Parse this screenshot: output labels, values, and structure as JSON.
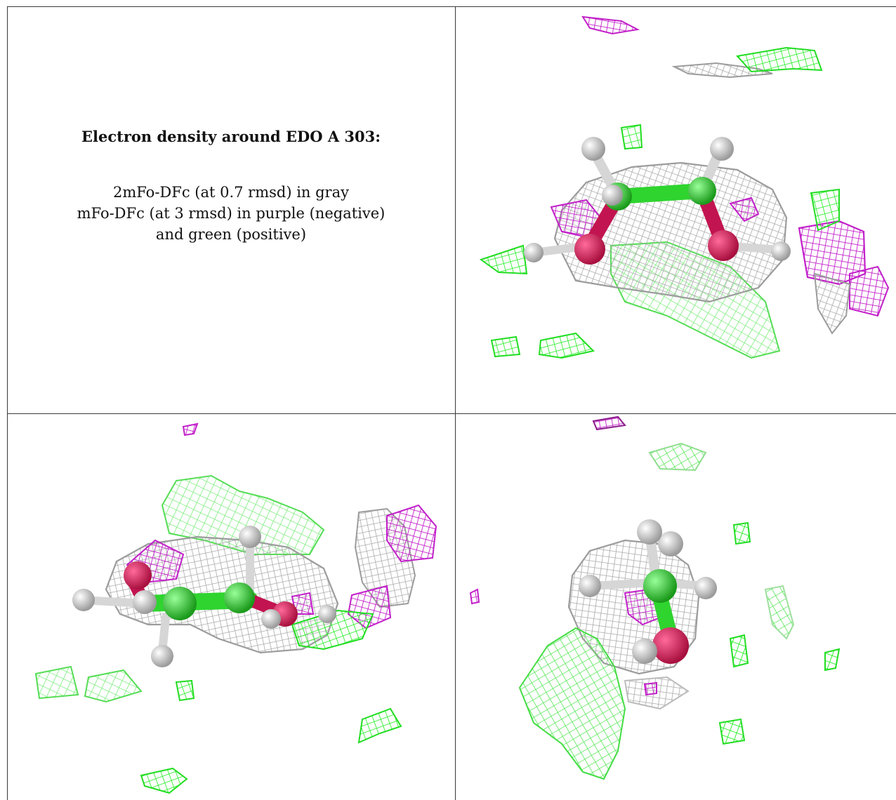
{
  "figure": {
    "title": "Electron density around EDO A 303:",
    "legend_line1": "2mFo-DFc (at 0.7 rmsd) in gray",
    "legend_line2": "mFo-DFc (at 3 rmsd) in purple (negative)",
    "legend_line3": "and green (positive)"
  },
  "colors": {
    "mesh_2fofc": "#b8b8b8",
    "mesh_positive": "#22ee22",
    "mesh_negative": "#cc22cc",
    "oxygen_atom": "#e0245e",
    "carbon_atom": "#33dd33",
    "hydrogen_atom": "#d9d9d9"
  },
  "panels": [
    {
      "view": "view-1",
      "icon": "electron-density-mesh-icon"
    },
    {
      "view": "view-2",
      "icon": "electron-density-mesh-icon"
    },
    {
      "view": "view-3",
      "icon": "electron-density-mesh-icon"
    }
  ]
}
